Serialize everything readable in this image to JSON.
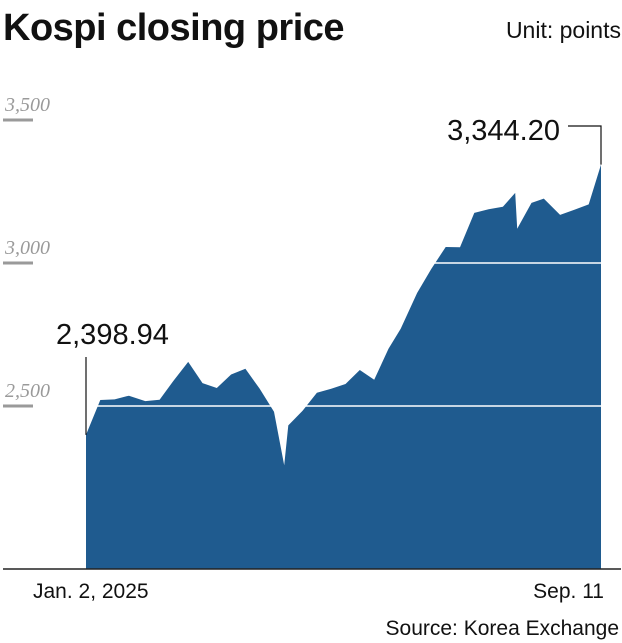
{
  "chart_data": {
    "type": "area",
    "title": "Kospi closing price",
    "unit_label": "Unit: points",
    "source": "Source: Korea Exchange",
    "ylim": [
      1930,
      3500
    ],
    "yticks": [
      {
        "value": 2500,
        "label": "2,500"
      },
      {
        "value": 3000,
        "label": "3,000"
      },
      {
        "value": 3500,
        "label": "3,500"
      }
    ],
    "grid_values": [
      2500,
      3000
    ],
    "x_labels": {
      "start": "Jan. 2, 2025",
      "end": "Sep. 11"
    },
    "annotations": {
      "start": {
        "value": 2398.94,
        "label": "2,398.94"
      },
      "end": {
        "value": 3344.2,
        "label": "3,344.20"
      }
    },
    "fill_color": "#1f5b8f",
    "x": [
      "2025-01-02",
      "2025-01-09",
      "2025-01-16",
      "2025-01-23",
      "2025-01-31",
      "2025-02-07",
      "2025-02-14",
      "2025-02-21",
      "2025-02-28",
      "2025-03-07",
      "2025-03-14",
      "2025-03-21",
      "2025-03-28",
      "2025-04-04",
      "2025-04-09",
      "2025-04-11",
      "2025-04-18",
      "2025-04-25",
      "2025-05-02",
      "2025-05-09",
      "2025-05-16",
      "2025-05-23",
      "2025-05-30",
      "2025-06-05",
      "2025-06-13",
      "2025-06-20",
      "2025-06-27",
      "2025-07-04",
      "2025-07-11",
      "2025-07-18",
      "2025-07-25",
      "2025-07-31",
      "2025-08-01",
      "2025-08-08",
      "2025-08-14",
      "2025-08-22",
      "2025-08-29",
      "2025-09-05",
      "2025-09-11"
    ],
    "values": [
      2398.94,
      2521,
      2523,
      2536,
      2517,
      2522,
      2590,
      2654,
      2580,
      2563,
      2610,
      2630,
      2560,
      2480,
      2293,
      2432,
      2483,
      2546,
      2560,
      2577,
      2626,
      2592,
      2700,
      2770,
      2895,
      2980,
      3056,
      3055,
      3175,
      3188,
      3197,
      3245,
      3120,
      3210,
      3225,
      3168,
      3186,
      3205,
      3344.2
    ]
  }
}
